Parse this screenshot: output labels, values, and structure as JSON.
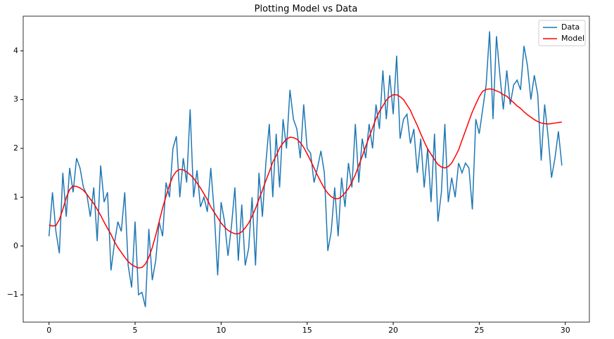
{
  "chart_data": {
    "type": "line",
    "title": "Plotting Model vs Data",
    "x": [
      0,
      0.2,
      0.4,
      0.6,
      0.8,
      1,
      1.2,
      1.4,
      1.6,
      1.8,
      2,
      2.2,
      2.4,
      2.6,
      2.8,
      3,
      3.2,
      3.4,
      3.6,
      3.8,
      4,
      4.2,
      4.4,
      4.6,
      4.8,
      5,
      5.2,
      5.4,
      5.6,
      5.8,
      6,
      6.2,
      6.4,
      6.6,
      6.8,
      7,
      7.2,
      7.4,
      7.6,
      7.8,
      8,
      8.2,
      8.4,
      8.6,
      8.8,
      9,
      9.2,
      9.4,
      9.6,
      9.8,
      10,
      10.2,
      10.4,
      10.6,
      10.8,
      11,
      11.2,
      11.4,
      11.6,
      11.8,
      12,
      12.2,
      12.4,
      12.6,
      12.8,
      13,
      13.2,
      13.4,
      13.6,
      13.8,
      14,
      14.2,
      14.4,
      14.6,
      14.8,
      15,
      15.2,
      15.4,
      15.6,
      15.8,
      16,
      16.2,
      16.4,
      16.6,
      16.8,
      17,
      17.2,
      17.4,
      17.6,
      17.8,
      18,
      18.2,
      18.4,
      18.6,
      18.8,
      19,
      19.2,
      19.4,
      19.6,
      19.8,
      20,
      20.2,
      20.4,
      20.6,
      20.8,
      21,
      21.2,
      21.4,
      21.6,
      21.8,
      22,
      22.2,
      22.4,
      22.6,
      22.8,
      23,
      23.2,
      23.4,
      23.6,
      23.8,
      24,
      24.2,
      24.4,
      24.6,
      24.8,
      25,
      25.2,
      25.4,
      25.6,
      25.8,
      26,
      26.2,
      26.4,
      26.6,
      26.8,
      27,
      27.2,
      27.4,
      27.6,
      27.8,
      28,
      28.2,
      28.4,
      28.6,
      28.8,
      29,
      29.2,
      29.4,
      29.6,
      29.8
    ],
    "series": [
      {
        "name": "Data",
        "color": "#1f77b4",
        "values": [
          0.2,
          1.1,
          0.3,
          -0.15,
          1.5,
          0.6,
          1.6,
          1.1,
          1.8,
          1.6,
          1.2,
          1.05,
          0.6,
          1.2,
          0.1,
          1.65,
          0.9,
          1.1,
          -0.5,
          0.05,
          0.5,
          0.3,
          1.1,
          -0.4,
          -0.85,
          0.5,
          -1.0,
          -0.95,
          -1.25,
          0.35,
          -0.7,
          -0.3,
          0.5,
          0.2,
          1.3,
          1.0,
          2.0,
          2.25,
          1.0,
          1.8,
          1.3,
          2.8,
          1.0,
          1.55,
          0.8,
          1.0,
          0.7,
          1.6,
          0.7,
          -0.6,
          0.9,
          0.5,
          -0.2,
          0.4,
          1.2,
          -0.3,
          0.85,
          -0.4,
          -0.05,
          1.0,
          -0.4,
          1.5,
          0.6,
          1.7,
          2.5,
          1.0,
          2.3,
          1.2,
          2.6,
          2.0,
          3.2,
          2.6,
          2.4,
          1.8,
          2.9,
          2.0,
          1.9,
          1.3,
          1.6,
          1.95,
          1.5,
          -0.1,
          0.3,
          1.2,
          0.2,
          1.4,
          0.8,
          1.7,
          1.2,
          2.5,
          1.3,
          2.2,
          1.8,
          2.5,
          2.0,
          2.9,
          2.4,
          3.6,
          2.6,
          3.5,
          2.7,
          3.9,
          2.2,
          2.6,
          2.7,
          2.1,
          2.4,
          1.5,
          2.2,
          1.2,
          2.0,
          0.9,
          2.3,
          0.5,
          1.1,
          2.5,
          0.9,
          1.4,
          1.0,
          1.7,
          1.5,
          1.7,
          1.6,
          0.75,
          2.6,
          2.3,
          2.8,
          3.3,
          4.4,
          2.6,
          4.3,
          3.5,
          2.8,
          3.6,
          2.9,
          3.3,
          3.4,
          3.2,
          4.1,
          3.7,
          3.0,
          3.5,
          3.1,
          1.75,
          2.9,
          2.25,
          1.4,
          1.8,
          2.35,
          1.65
        ]
      },
      {
        "name": "Model",
        "color": "#ff0000",
        "values": [
          0.43,
          0.41,
          0.42,
          0.54,
          0.75,
          0.99,
          1.16,
          1.23,
          1.22,
          1.19,
          1.14,
          1.06,
          0.96,
          0.87,
          0.75,
          0.63,
          0.49,
          0.36,
          0.24,
          0.09,
          -0.03,
          -0.13,
          -0.23,
          -0.32,
          -0.38,
          -0.42,
          -0.45,
          -0.44,
          -0.37,
          -0.23,
          -0.03,
          0.22,
          0.5,
          0.78,
          1.02,
          1.25,
          1.43,
          1.53,
          1.57,
          1.56,
          1.52,
          1.46,
          1.39,
          1.29,
          1.19,
          1.07,
          0.95,
          0.8,
          0.69,
          0.58,
          0.47,
          0.39,
          0.32,
          0.28,
          0.25,
          0.25,
          0.29,
          0.37,
          0.47,
          0.61,
          0.77,
          0.96,
          1.14,
          1.34,
          1.52,
          1.72,
          1.85,
          2.01,
          2.11,
          2.19,
          2.23,
          2.22,
          2.19,
          2.12,
          2.02,
          1.89,
          1.75,
          1.6,
          1.45,
          1.31,
          1.18,
          1.08,
          1.01,
          0.97,
          0.97,
          1.01,
          1.09,
          1.18,
          1.31,
          1.46,
          1.65,
          1.84,
          2.04,
          2.23,
          2.42,
          2.61,
          2.76,
          2.87,
          2.99,
          3.06,
          3.1,
          3.1,
          3.06,
          3.0,
          2.89,
          2.78,
          2.62,
          2.47,
          2.3,
          2.14,
          1.99,
          1.88,
          1.77,
          1.67,
          1.62,
          1.6,
          1.63,
          1.7,
          1.83,
          1.97,
          2.17,
          2.36,
          2.56,
          2.75,
          2.91,
          3.06,
          3.17,
          3.21,
          3.22,
          3.21,
          3.18,
          3.15,
          3.1,
          3.07,
          3.0,
          2.94,
          2.87,
          2.82,
          2.75,
          2.69,
          2.64,
          2.59,
          2.55,
          2.52,
          2.51,
          2.5,
          2.51,
          2.52,
          2.53,
          2.54
        ]
      }
    ],
    "xlim": [
      -1.5,
      31.4
    ],
    "xticks": [
      0,
      5,
      10,
      15,
      20,
      25,
      30
    ],
    "ylim": [
      -1.56,
      4.71
    ],
    "yticks": [
      {
        "value": -1,
        "label": "−1"
      },
      0,
      1,
      2,
      3,
      4
    ],
    "grid": false,
    "legend": "upper right"
  }
}
